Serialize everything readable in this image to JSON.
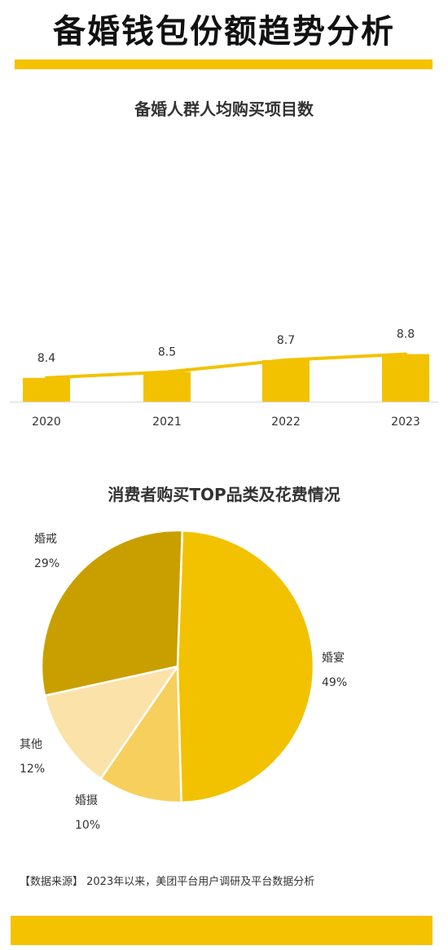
{
  "page": {
    "title": "备婚钱包份额趋势分析",
    "source": "【数据来源】 2023年以来，美团平台用户调研及平台数据分析"
  },
  "colors": {
    "accent": "#f5c200",
    "bar": "#f2c200",
    "line": "#f2c200"
  },
  "chart_data": [
    {
      "type": "bar",
      "title": "备婚人群人均购买项目数",
      "categories": [
        "2020",
        "2021",
        "2022",
        "2023"
      ],
      "values": [
        8.4,
        8.5,
        8.7,
        8.8
      ],
      "data_labels": [
        "8.4",
        "8.5",
        "8.7",
        "8.8"
      ],
      "overlay_line": true,
      "grid": false,
      "legend": "none"
    },
    {
      "type": "pie",
      "title": "消费者购买TOP品类及花费情况",
      "slices": [
        {
          "label": "婚宴",
          "value": 49,
          "display": "49%",
          "color": "#f2c200"
        },
        {
          "label": "婚摄",
          "value": 10,
          "display": "10%",
          "color": "#f7cf5c"
        },
        {
          "label": "其他",
          "value": 12,
          "display": "12%",
          "color": "#fbe2a8"
        },
        {
          "label": "婚戒",
          "value": 29,
          "display": "29%",
          "color": "#c99f00"
        }
      ],
      "legend": "none"
    }
  ]
}
